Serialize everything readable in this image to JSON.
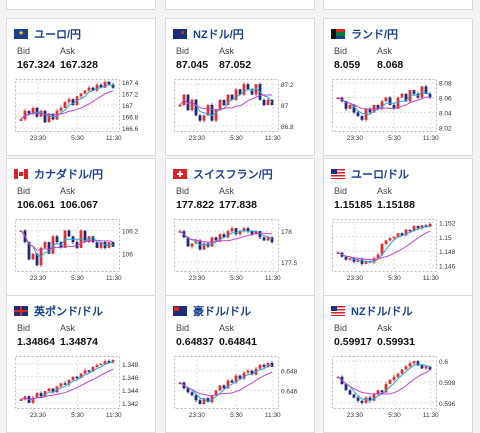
{
  "labels": {
    "bid": "Bid",
    "ask": "Ask"
  },
  "colors": {
    "up": "#e03030",
    "down": "#1b2a7a",
    "ma_fast": "#2aa6d6",
    "ma_slow": "#c046c8",
    "title": "#1a3f8f"
  },
  "cards": [
    {
      "flag": "eu-flag-icon",
      "title": "ユーロ/円",
      "bid": "167.324",
      "ask": "167.328",
      "x_ticks": [
        "23:30",
        "5:30",
        "11:30"
      ],
      "y_ticks": [
        "167.4",
        "167.2",
        "167",
        "166.8",
        "166.6"
      ],
      "ylim": [
        166.55,
        167.45
      ],
      "trend": [
        166.75,
        166.9,
        166.85,
        166.95,
        166.8,
        166.9,
        166.7,
        166.85,
        166.75,
        166.9,
        166.95,
        167.05,
        167.1,
        167.0,
        167.15,
        167.2,
        167.25,
        167.3,
        167.25,
        167.35,
        167.3,
        167.4,
        167.35,
        167.3
      ],
      "seed": 1
    },
    {
      "flag": "nz-flag-icon",
      "title": "NZドル/円",
      "bid": "87.045",
      "ask": "87.052",
      "x_ticks": [
        "23:30",
        "5:30",
        "11:30"
      ],
      "y_ticks": [
        "87.2",
        "87",
        "86.8"
      ],
      "ylim": [
        86.75,
        87.25
      ],
      "trend": [
        87.0,
        87.1,
        86.95,
        87.05,
        86.9,
        86.85,
        86.9,
        87.0,
        86.85,
        86.95,
        87.05,
        87.0,
        87.1,
        87.05,
        87.15,
        87.1,
        87.2,
        87.15,
        87.1,
        87.2,
        87.05,
        87.0,
        87.05,
        87.0
      ],
      "seed": 2
    },
    {
      "flag": "za-flag-icon",
      "title": "ランド/円",
      "bid": "8.059",
      "ask": "8.068",
      "x_ticks": [
        "23:30",
        "5:30",
        "11:30"
      ],
      "y_ticks": [
        "8.08",
        "8.06",
        "8.04",
        "8.02"
      ],
      "ylim": [
        8.015,
        8.085
      ],
      "trend": [
        8.06,
        8.055,
        8.045,
        8.05,
        8.04,
        8.035,
        8.03,
        8.045,
        8.04,
        8.05,
        8.045,
        8.055,
        8.06,
        8.05,
        8.045,
        8.06,
        8.065,
        8.055,
        8.07,
        8.065,
        8.06,
        8.075,
        8.065,
        8.06
      ],
      "seed": 3
    },
    {
      "flag": "ca-flag-icon",
      "title": "カナダドル/円",
      "bid": "106.061",
      "ask": "106.067",
      "x_ticks": [
        "23:30",
        "5:30",
        "11:30"
      ],
      "y_ticks": [
        "106.2",
        "106"
      ],
      "ylim": [
        105.85,
        106.3
      ],
      "trend": [
        106.2,
        106.1,
        105.95,
        106.0,
        105.9,
        106.05,
        106.1,
        106.0,
        106.15,
        106.1,
        106.05,
        106.2,
        106.15,
        106.1,
        106.05,
        106.2,
        106.1,
        106.15,
        106.1,
        106.05,
        106.1,
        106.05,
        106.1,
        106.06
      ],
      "seed": 4
    },
    {
      "flag": "ch-flag-icon",
      "title": "スイスフラン/円",
      "bid": "177.822",
      "ask": "177.838",
      "x_ticks": [
        "23:30",
        "5:30",
        "11:30"
      ],
      "y_ticks": [
        "178",
        "177.5"
      ],
      "ylim": [
        177.35,
        178.2
      ],
      "trend": [
        178.0,
        177.9,
        177.75,
        177.8,
        177.85,
        177.7,
        177.8,
        177.75,
        177.9,
        177.85,
        177.95,
        177.9,
        178.0,
        178.05,
        177.95,
        178.0,
        178.05,
        178.0,
        177.95,
        178.0,
        177.9,
        177.85,
        177.9,
        177.82
      ],
      "seed": 5
    },
    {
      "flag": "us-flag-icon",
      "title": "ユーロ/ドル",
      "bid": "1.15185",
      "ask": "1.15188",
      "x_ticks": [
        "23:30",
        "5:30",
        "11:30"
      ],
      "y_ticks": [
        "1.152",
        "1.15",
        "1.148",
        "1.146"
      ],
      "ylim": [
        1.1452,
        1.1525
      ],
      "trend": [
        1.1478,
        1.1472,
        1.1468,
        1.147,
        1.1465,
        1.1468,
        1.1462,
        1.1466,
        1.1464,
        1.147,
        1.1475,
        1.149,
        1.1495,
        1.1498,
        1.15,
        1.1505,
        1.1502,
        1.151,
        1.1508,
        1.1515,
        1.1512,
        1.1516,
        1.1514,
        1.1518
      ],
      "seed": 6
    },
    {
      "flag": "gb-flag-icon",
      "title": "英ポンド/ドル",
      "bid": "1.34864",
      "ask": "1.34874",
      "x_ticks": [
        "23:30",
        "5:30",
        "11:30"
      ],
      "y_ticks": [
        "1.348",
        "1.346",
        "1.344",
        "1.342"
      ],
      "ylim": [
        1.3412,
        1.3492
      ],
      "trend": [
        1.3425,
        1.343,
        1.342,
        1.3428,
        1.3435,
        1.343,
        1.3438,
        1.3442,
        1.3436,
        1.3445,
        1.345,
        1.3448,
        1.3455,
        1.346,
        1.3458,
        1.3465,
        1.347,
        1.3468,
        1.3475,
        1.3478,
        1.348,
        1.3484,
        1.3482,
        1.3486
      ],
      "seed": 7
    },
    {
      "flag": "au-flag-icon",
      "title": "豪ドル/ドル",
      "bid": "0.64837",
      "ask": "0.64841",
      "x_ticks": [
        "23:30",
        "5:30",
        "11:30"
      ],
      "y_ticks": [
        "0.648",
        "0.646"
      ],
      "ylim": [
        0.6442,
        0.6495
      ],
      "trend": [
        0.6468,
        0.6462,
        0.6458,
        0.6455,
        0.645,
        0.6446,
        0.6452,
        0.6448,
        0.6455,
        0.646,
        0.6465,
        0.6462,
        0.647,
        0.6468,
        0.6475,
        0.6472,
        0.6478,
        0.648,
        0.6476,
        0.6482,
        0.6486,
        0.6484,
        0.6488,
        0.6484
      ],
      "seed": 8
    },
    {
      "flag": "us-flag-icon",
      "title": "NZドル/ドル",
      "bid": "0.59917",
      "ask": "0.59931",
      "x_ticks": [
        "23:30",
        "5:30",
        "11:30"
      ],
      "y_ticks": [
        "0.6",
        "0.598",
        "0.596"
      ],
      "ylim": [
        0.5955,
        0.6005
      ],
      "trend": [
        0.5985,
        0.5978,
        0.5972,
        0.5968,
        0.5965,
        0.5962,
        0.596,
        0.5965,
        0.5962,
        0.5968,
        0.5972,
        0.597,
        0.5978,
        0.5982,
        0.5985,
        0.5988,
        0.5992,
        0.5995,
        0.5998,
        0.6,
        0.5996,
        0.5993,
        0.5995,
        0.5992
      ],
      "seed": 9
    }
  ]
}
